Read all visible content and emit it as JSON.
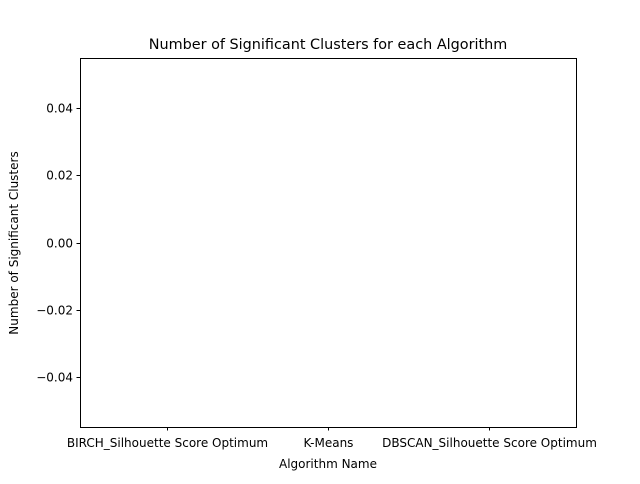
{
  "chart_data": {
    "type": "bar",
    "title": "Number of Significant Clusters for each Algorithm",
    "xlabel": "Algorithm Name",
    "ylabel": "Number of Significant Clusters",
    "categories": [
      "BIRCH_Silhouette Score Optimum",
      "K-Means",
      "DBSCAN_Silhouette Score Optimum"
    ],
    "values": [
      0,
      0,
      0
    ],
    "ylim": [
      -0.055,
      0.055
    ],
    "yticks": [
      0.04,
      0.02,
      0.0,
      -0.02,
      -0.04
    ],
    "ytick_labels": [
      "0.04",
      "0.02",
      "0.00",
      "−0.02",
      "−0.04"
    ],
    "grid": false,
    "colors": {
      "axes": "#000000",
      "background": "#ffffff"
    }
  }
}
